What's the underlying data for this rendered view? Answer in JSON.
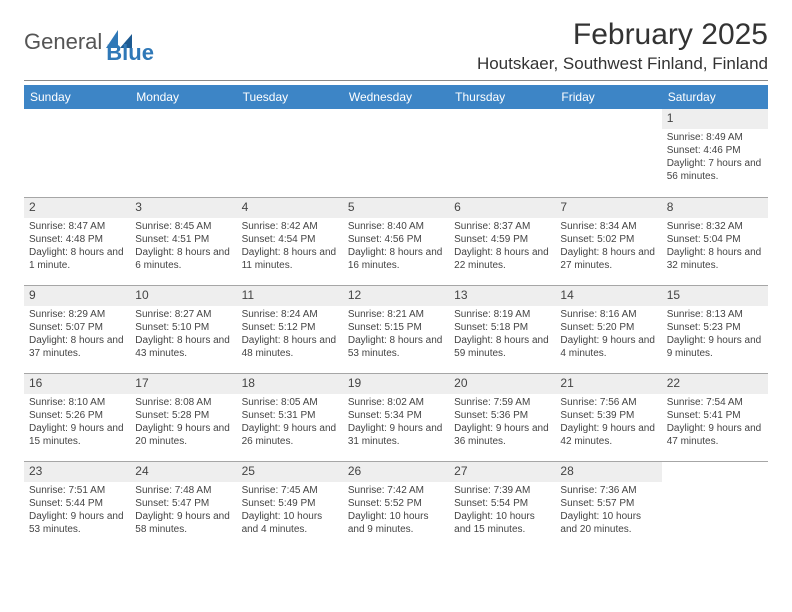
{
  "logo": {
    "text1": "General",
    "text2": "Blue"
  },
  "header": {
    "month_title": "February 2025",
    "location": "Houtskaer, Southwest Finland, Finland"
  },
  "colors": {
    "header_band": "#3d85c6",
    "header_text": "#ffffff",
    "rule": "#888888",
    "cell_border": "#a6a6a6",
    "daynum_band": "#eeeeee",
    "text": "#444444",
    "logo_general": "#555555",
    "logo_blue": "#2f78b7"
  },
  "weekdays": [
    "Sunday",
    "Monday",
    "Tuesday",
    "Wednesday",
    "Thursday",
    "Friday",
    "Saturday"
  ],
  "weeks": [
    [
      null,
      null,
      null,
      null,
      null,
      null,
      {
        "n": "1",
        "sunrise": "8:49 AM",
        "sunset": "4:46 PM",
        "daylight": "7 hours and 56 minutes."
      }
    ],
    [
      {
        "n": "2",
        "sunrise": "8:47 AM",
        "sunset": "4:48 PM",
        "daylight": "8 hours and 1 minute."
      },
      {
        "n": "3",
        "sunrise": "8:45 AM",
        "sunset": "4:51 PM",
        "daylight": "8 hours and 6 minutes."
      },
      {
        "n": "4",
        "sunrise": "8:42 AM",
        "sunset": "4:54 PM",
        "daylight": "8 hours and 11 minutes."
      },
      {
        "n": "5",
        "sunrise": "8:40 AM",
        "sunset": "4:56 PM",
        "daylight": "8 hours and 16 minutes."
      },
      {
        "n": "6",
        "sunrise": "8:37 AM",
        "sunset": "4:59 PM",
        "daylight": "8 hours and 22 minutes."
      },
      {
        "n": "7",
        "sunrise": "8:34 AM",
        "sunset": "5:02 PM",
        "daylight": "8 hours and 27 minutes."
      },
      {
        "n": "8",
        "sunrise": "8:32 AM",
        "sunset": "5:04 PM",
        "daylight": "8 hours and 32 minutes."
      }
    ],
    [
      {
        "n": "9",
        "sunrise": "8:29 AM",
        "sunset": "5:07 PM",
        "daylight": "8 hours and 37 minutes."
      },
      {
        "n": "10",
        "sunrise": "8:27 AM",
        "sunset": "5:10 PM",
        "daylight": "8 hours and 43 minutes."
      },
      {
        "n": "11",
        "sunrise": "8:24 AM",
        "sunset": "5:12 PM",
        "daylight": "8 hours and 48 minutes."
      },
      {
        "n": "12",
        "sunrise": "8:21 AM",
        "sunset": "5:15 PM",
        "daylight": "8 hours and 53 minutes."
      },
      {
        "n": "13",
        "sunrise": "8:19 AM",
        "sunset": "5:18 PM",
        "daylight": "8 hours and 59 minutes."
      },
      {
        "n": "14",
        "sunrise": "8:16 AM",
        "sunset": "5:20 PM",
        "daylight": "9 hours and 4 minutes."
      },
      {
        "n": "15",
        "sunrise": "8:13 AM",
        "sunset": "5:23 PM",
        "daylight": "9 hours and 9 minutes."
      }
    ],
    [
      {
        "n": "16",
        "sunrise": "8:10 AM",
        "sunset": "5:26 PM",
        "daylight": "9 hours and 15 minutes."
      },
      {
        "n": "17",
        "sunrise": "8:08 AM",
        "sunset": "5:28 PM",
        "daylight": "9 hours and 20 minutes."
      },
      {
        "n": "18",
        "sunrise": "8:05 AM",
        "sunset": "5:31 PM",
        "daylight": "9 hours and 26 minutes."
      },
      {
        "n": "19",
        "sunrise": "8:02 AM",
        "sunset": "5:34 PM",
        "daylight": "9 hours and 31 minutes."
      },
      {
        "n": "20",
        "sunrise": "7:59 AM",
        "sunset": "5:36 PM",
        "daylight": "9 hours and 36 minutes."
      },
      {
        "n": "21",
        "sunrise": "7:56 AM",
        "sunset": "5:39 PM",
        "daylight": "9 hours and 42 minutes."
      },
      {
        "n": "22",
        "sunrise": "7:54 AM",
        "sunset": "5:41 PM",
        "daylight": "9 hours and 47 minutes."
      }
    ],
    [
      {
        "n": "23",
        "sunrise": "7:51 AM",
        "sunset": "5:44 PM",
        "daylight": "9 hours and 53 minutes."
      },
      {
        "n": "24",
        "sunrise": "7:48 AM",
        "sunset": "5:47 PM",
        "daylight": "9 hours and 58 minutes."
      },
      {
        "n": "25",
        "sunrise": "7:45 AM",
        "sunset": "5:49 PM",
        "daylight": "10 hours and 4 minutes."
      },
      {
        "n": "26",
        "sunrise": "7:42 AM",
        "sunset": "5:52 PM",
        "daylight": "10 hours and 9 minutes."
      },
      {
        "n": "27",
        "sunrise": "7:39 AM",
        "sunset": "5:54 PM",
        "daylight": "10 hours and 15 minutes."
      },
      {
        "n": "28",
        "sunrise": "7:36 AM",
        "sunset": "5:57 PM",
        "daylight": "10 hours and 20 minutes."
      },
      null
    ]
  ],
  "labels": {
    "sunrise_prefix": "Sunrise: ",
    "sunset_prefix": "Sunset: ",
    "daylight_prefix": "Daylight: "
  }
}
